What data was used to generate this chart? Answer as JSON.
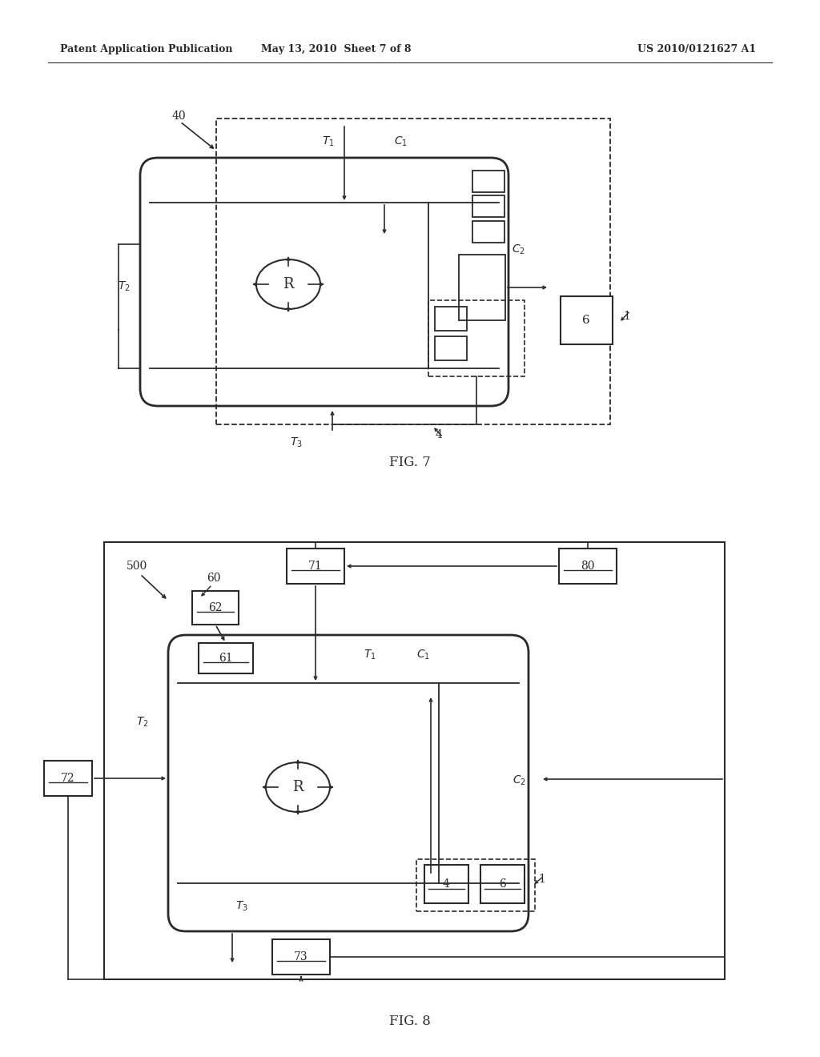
{
  "background_color": "#ffffff",
  "header_left": "Patent Application Publication",
  "header_mid": "May 13, 2010  Sheet 7 of 8",
  "header_right": "US 2010/0121627 A1",
  "fig7_label": "FIG. 7",
  "fig8_label": "FIG. 8",
  "line_color": "#2a2a2a",
  "text_color": "#2a2a2a"
}
